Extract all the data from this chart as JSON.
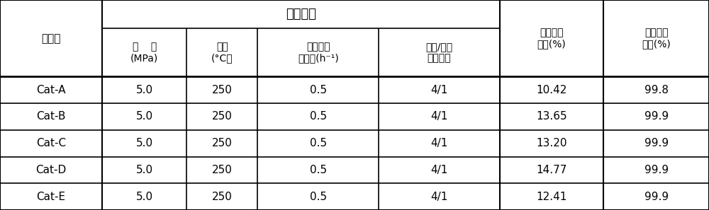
{
  "title_merged": "反应条件",
  "col_headers_row0": [
    "催化剂",
    "",
    "",
    "",
    "",
    "异丁烯转\n化率(%)",
    "叔丁胺选\n择性(%)"
  ],
  "col_headers_row1": [
    "",
    "压    力\n(MPa)",
    "温度\n(°C）",
    "异丁烯重\n量空速(h⁻¹)",
    "氨气/异丁\n烯摩尔比",
    "",
    ""
  ],
  "rows": [
    [
      "Cat-A",
      "5.0",
      "250",
      "0.5",
      "4/1",
      "10.42",
      "99.8"
    ],
    [
      "Cat-B",
      "5.0",
      "250",
      "0.5",
      "4/1",
      "13.65",
      "99.9"
    ],
    [
      "Cat-C",
      "5.0",
      "250",
      "0.5",
      "4/1",
      "13.20",
      "99.9"
    ],
    [
      "Cat-D",
      "5.0",
      "250",
      "0.5",
      "4/1",
      "14.77",
      "99.9"
    ],
    [
      "Cat-E",
      "5.0",
      "250",
      "0.5",
      "4/1",
      "12.41",
      "99.9"
    ]
  ],
  "bg_color": "#ffffff",
  "line_color": "#000000",
  "text_color": "#000000"
}
